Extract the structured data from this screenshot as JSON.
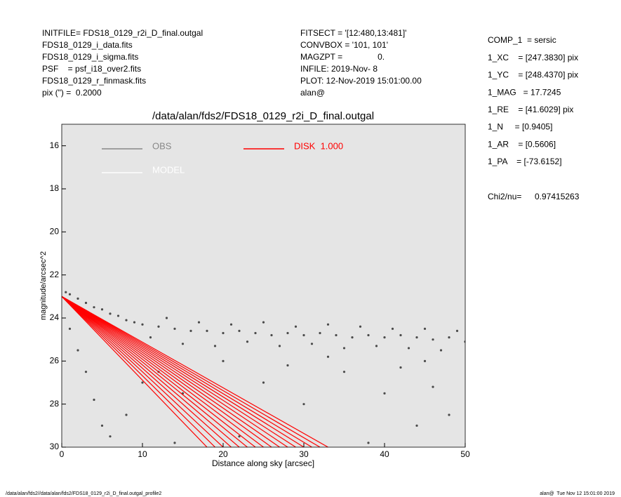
{
  "header": {
    "left": [
      "INITFILE= FDS18_0129_r2i_D_final.outgal",
      "FDS18_0129_i_data.fits",
      "FDS18_0129_i_sigma.fits",
      "PSF    = psf_i18_over2.fits",
      "FDS18_0129_r_finmask.fits",
      "pix (\") =  0.2000"
    ],
    "middle": [
      "FITSECT = '[12:480,13:481]'",
      "CONVBOX = '101, 101'",
      "MAGZPT =               0.",
      "INFILE: 2019-Nov- 8",
      "PLOT: 12-Nov-2019 15:01:00.00",
      "alan@"
    ],
    "params": [
      "COMP_1  = sersic",
      "1_XC    = [247.3830] pix",
      "1_YC    = [248.4370] pix",
      "1_MAG   = 17.7245",
      "1_RE    = [41.6029] pix",
      "1_N     = [0.9405]",
      "1_AR    = [0.5606]",
      "1_PA    = [-73.6152]"
    ],
    "chi_label": "Chi2/nu=",
    "chi_value": "0.97415263"
  },
  "footer": {
    "left": "/data/alan/fds2//data/alan/fds2/FDS18_0129_r2i_D_final.outgal_profile2",
    "right": "alan@  Tue Nov 12 15:01:00 2019"
  },
  "chart_data": {
    "type": "scatter",
    "title": "/data/alan/fds2/FDS18_0129_r2i_D_final.outgal",
    "xlabel": "Distance along sky [arcsec]",
    "ylabel": "magnitude/arcsec^2",
    "xlim": [
      0,
      50
    ],
    "ylim": [
      15,
      30
    ],
    "yinvert": true,
    "xticks": [
      0,
      10,
      20,
      30,
      40,
      50
    ],
    "yticks": [
      16,
      18,
      20,
      22,
      24,
      26,
      28,
      30
    ],
    "background": "#e5e5e5",
    "legend": [
      {
        "name": "OBS",
        "color": "#888888"
      },
      {
        "name": "MODEL",
        "color": "#ffffff"
      },
      {
        "name": "DISK  1.000",
        "color": "#ff0000"
      }
    ],
    "series": [
      {
        "name": "OBS",
        "type": "scatter",
        "color": "#4a4a4a",
        "x": [
          0.5,
          1,
          2,
          3,
          4,
          5,
          6,
          7,
          8,
          9,
          10,
          12,
          14,
          16,
          18,
          20,
          22,
          24,
          26,
          28,
          30,
          32,
          34,
          36,
          38,
          40,
          42,
          44,
          46,
          48,
          50,
          11,
          15,
          19,
          23,
          27,
          31,
          35,
          39,
          43,
          47,
          13,
          17,
          21,
          25,
          29,
          33,
          37,
          41,
          45,
          49,
          1,
          2,
          3,
          4,
          5,
          6,
          8,
          10,
          12,
          15,
          20,
          25,
          30,
          35,
          40,
          45,
          48,
          22,
          38,
          44,
          28,
          33,
          42,
          14,
          46
        ],
        "y": [
          22.8,
          22.9,
          23.1,
          23.3,
          23.5,
          23.6,
          23.8,
          23.9,
          24.1,
          24.2,
          24.3,
          24.4,
          24.5,
          24.6,
          24.6,
          24.7,
          24.6,
          24.7,
          24.8,
          24.7,
          24.8,
          24.7,
          24.8,
          24.9,
          24.8,
          24.9,
          24.8,
          24.9,
          25.0,
          24.9,
          25.1,
          24.9,
          25.2,
          25.3,
          25.1,
          25.3,
          25.2,
          25.4,
          25.3,
          25.4,
          25.5,
          24.0,
          24.2,
          24.3,
          24.2,
          24.4,
          24.3,
          24.4,
          24.5,
          24.5,
          24.6,
          24.5,
          25.5,
          26.5,
          27.8,
          29,
          29.5,
          28.5,
          27,
          26.5,
          27.5,
          26,
          27,
          28,
          26.5,
          27.5,
          26,
          28.5,
          29.5,
          29.8,
          29,
          26.2,
          25.8,
          26.3,
          29.8,
          27.2
        ]
      },
      {
        "name": "DISK  1.000",
        "type": "line",
        "color": "#ff0000",
        "x": [
          0,
          18,
          null,
          0,
          19,
          null,
          0,
          20,
          null,
          0,
          21,
          null,
          0,
          22,
          null,
          0,
          23,
          null,
          0,
          24,
          null,
          0,
          25,
          null,
          0,
          26,
          null,
          0,
          27,
          null,
          0,
          28,
          null,
          0,
          29,
          null,
          0,
          30,
          null,
          0,
          31,
          null,
          0,
          32,
          null,
          0,
          33
        ],
        "y": [
          23,
          30,
          null,
          23,
          30,
          null,
          23,
          30,
          null,
          23,
          30,
          null,
          23,
          30,
          null,
          23,
          30,
          null,
          23,
          30,
          null,
          23,
          30,
          null,
          23,
          30,
          null,
          23,
          30,
          null,
          23,
          30,
          null,
          23,
          30,
          null,
          23,
          30,
          null,
          23,
          30,
          null,
          23,
          30,
          null,
          23,
          30
        ]
      }
    ]
  }
}
